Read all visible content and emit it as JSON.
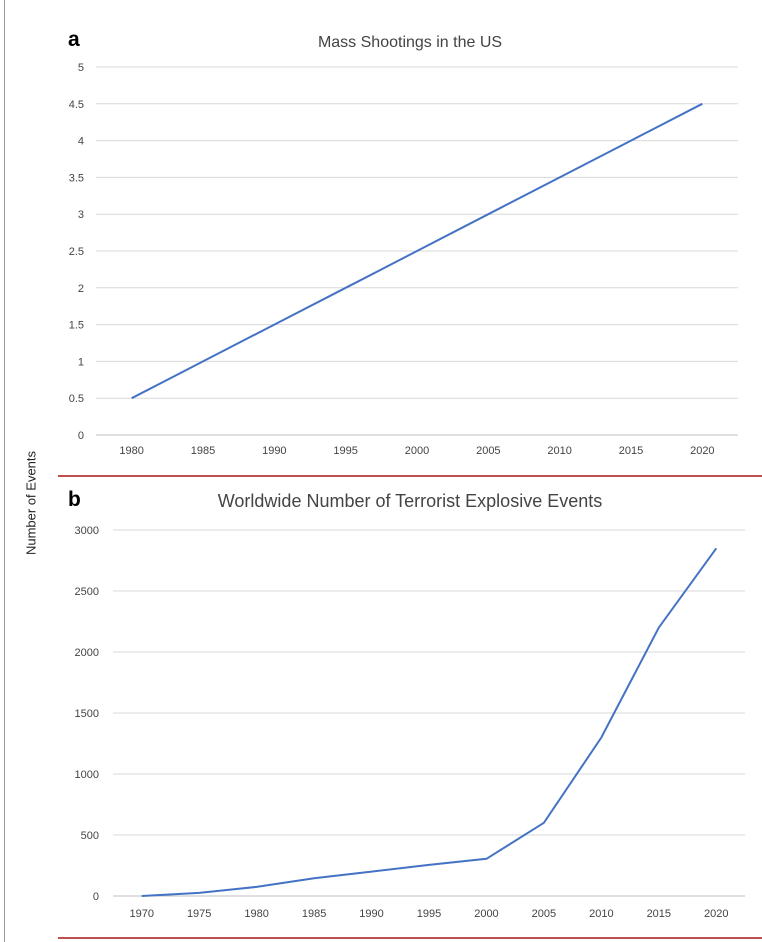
{
  "shared_ylabel": "Number of Events",
  "colors": {
    "line": "#4472c4",
    "divider": "#c0504d",
    "grid": "#d9d9d9"
  },
  "panels": [
    {
      "letter": "a",
      "title": "Mass Shootings in the US"
    },
    {
      "letter": "b",
      "title": "Worldwide Number of Terrorist Explosive Events"
    }
  ],
  "chart_data": [
    {
      "type": "line",
      "title": "Mass Shootings in the US",
      "xlabel": "",
      "ylabel": "Number of Events",
      "categories": [
        "1980",
        "1985",
        "1990",
        "1995",
        "2000",
        "2005",
        "2010",
        "2015",
        "2020"
      ],
      "yticks": [
        "0",
        "0.5",
        "1",
        "1.5",
        "2",
        "2.5",
        "3",
        "3.5",
        "4",
        "4.5",
        "5"
      ],
      "ylim": [
        0,
        5
      ],
      "grid": true,
      "series": [
        {
          "values": [
            0.5,
            1.0,
            1.5,
            2.0,
            2.5,
            3.0,
            3.5,
            4.0,
            4.5
          ]
        }
      ]
    },
    {
      "type": "line",
      "title": "Worldwide Number of Terrorist Explosive Events",
      "xlabel": "",
      "ylabel": "Number of Events",
      "categories": [
        "1970",
        "1975",
        "1980",
        "1985",
        "1990",
        "1995",
        "2000",
        "2005",
        "2010",
        "2015",
        "2020"
      ],
      "yticks": [
        "0",
        "500",
        "1000",
        "1500",
        "2000",
        "2500",
        "3000"
      ],
      "ylim": [
        0,
        3000
      ],
      "grid": true,
      "series": [
        {
          "values": [
            0,
            25,
            75,
            145,
            200,
            255,
            305,
            600,
            1300,
            2200,
            2850
          ]
        }
      ]
    }
  ]
}
